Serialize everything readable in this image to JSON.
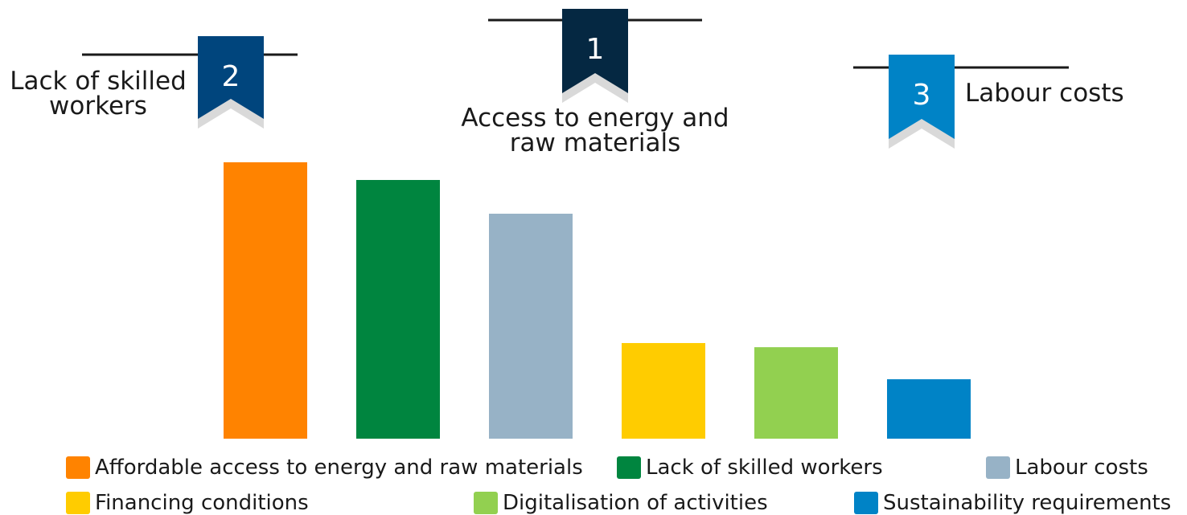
{
  "podium": [
    {
      "rank": "1",
      "label": "Access to energy and raw materials",
      "color": "#052842"
    },
    {
      "rank": "2",
      "label": "Lack of skilled workers",
      "color": "#00457D"
    },
    {
      "rank": "3",
      "label": "Labour costs",
      "color": "#0083C6"
    }
  ],
  "chart_data": {
    "type": "bar",
    "categories": [
      "Affordable access to energy and raw materials",
      "Lack of skilled workers",
      "Labour costs",
      "Financing conditions",
      "Digitalisation of activities",
      "Sustainability requirements"
    ],
    "values": [
      100,
      93.6,
      81.4,
      34.6,
      33.1,
      21.5
    ],
    "colors": [
      "#FF8300",
      "#00853F",
      "#97B2C6",
      "#FFCC00",
      "#92D050",
      "#0083C6"
    ],
    "title": "",
    "xlabel": "",
    "ylabel": "",
    "ylim": [
      0,
      100
    ],
    "grid": false,
    "legend": "bottom"
  }
}
